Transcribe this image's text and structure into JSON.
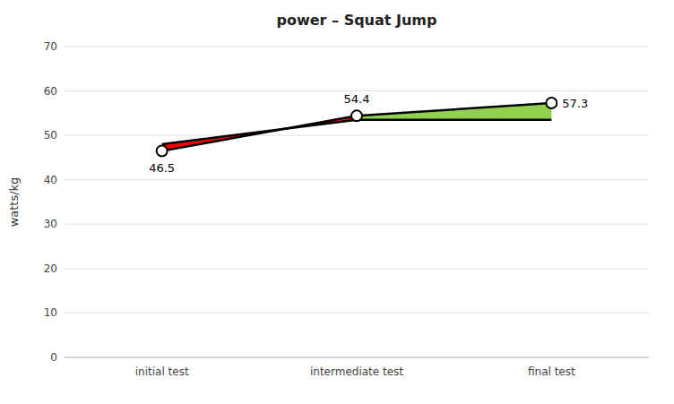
{
  "chart_data": {
    "type": "line",
    "title": "power – Squat Jump",
    "ylabel": "watts/kg",
    "categories": [
      "initial test",
      "intermediate test",
      "final test"
    ],
    "series": [
      {
        "color": "#000000",
        "marker": "circle",
        "values": [
          46.5,
          54.4,
          57.3
        ]
      },
      {
        "color": "#000000",
        "values": [
          48.0,
          53.5,
          53.5
        ]
      }
    ],
    "colors": [
      "#ff0000",
      "#92d050"
    ],
    "annotations": [
      {
        "text": "46.5",
        "category": "initial test",
        "y": 46.5
      },
      {
        "text": "54.4",
        "category": "intermediate test",
        "y": 54.4
      },
      {
        "text": "57.3",
        "category": "final test",
        "y": 57.3
      }
    ],
    "ylim": [
      0,
      70
    ],
    "yticks": [
      0,
      10,
      20,
      30,
      40,
      50,
      60,
      70
    ],
    "grid": true
  }
}
